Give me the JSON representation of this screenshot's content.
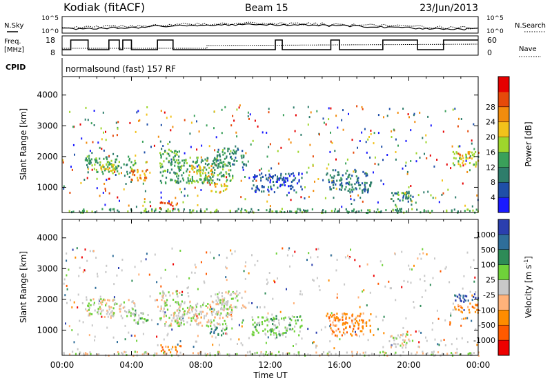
{
  "header": {
    "station": "Kodiak (fitACF)",
    "beam": "Beam 15",
    "date": "23/Jun/2013"
  },
  "summary_panels": {
    "nsky_label": "N.Sky",
    "nsky_ticks": [
      "10^5",
      "10^0"
    ],
    "nsearch_label": "N.Search",
    "nsearch_ticks": [
      "10^5",
      "10^0"
    ],
    "freq_label_line1": "Freq.",
    "freq_label_line2": "[MHz]",
    "freq_ticks": [
      "18",
      "8"
    ],
    "nave_label": "Nave",
    "nave_ticks": [
      "60",
      "0"
    ],
    "cpid_label": "CPID",
    "cpid_text": "normalsound (fast) 157 RF"
  },
  "chart_data": [
    {
      "type": "heatmap",
      "name": "power",
      "ylabel": "Slant Range [km]",
      "xlabel": "",
      "y_ticks": [
        "1000",
        "2000",
        "3000",
        "4000"
      ],
      "ylim": [
        180,
        4600
      ],
      "xlim_hours": [
        0,
        24
      ],
      "colorbar": {
        "label": "Power [dB]",
        "ticks": [
          "4",
          "8",
          "12",
          "16",
          "20",
          "24",
          "28"
        ],
        "colors": [
          "#1a1aff",
          "#1f4fa8",
          "#2e7d6b",
          "#3aa05a",
          "#9ed62c",
          "#f2c21b",
          "#f28c0d",
          "#e64a0a",
          "#e60000"
        ]
      },
      "regions": [
        {
          "t": [
            1.3,
            4.2
          ],
          "r": [
            1450,
            2050
          ],
          "level": 3
        },
        {
          "t": [
            2.0,
            3.0
          ],
          "r": [
            1550,
            1850
          ],
          "level": 5
        },
        {
          "t": [
            3.9,
            5.0
          ],
          "r": [
            1200,
            1600
          ],
          "level": 6
        },
        {
          "t": [
            5.6,
            6.6
          ],
          "r": [
            300,
            550
          ],
          "level": 7
        },
        {
          "t": [
            5.6,
            6.8
          ],
          "r": [
            1150,
            2300
          ],
          "level": 3
        },
        {
          "t": [
            6.5,
            9.8
          ],
          "r": [
            1150,
            2000
          ],
          "level": 3
        },
        {
          "t": [
            7.2,
            8.6
          ],
          "r": [
            1400,
            1800
          ],
          "level": 5
        },
        {
          "t": [
            8.8,
            10.6
          ],
          "r": [
            1700,
            2300
          ],
          "level": 2
        },
        {
          "t": [
            8.5,
            9.5
          ],
          "r": [
            850,
            1150
          ],
          "level": 5
        },
        {
          "t": [
            10.9,
            13.8
          ],
          "r": [
            850,
            1500
          ],
          "level": 1
        },
        {
          "t": [
            15.2,
            17.8
          ],
          "r": [
            850,
            1600
          ],
          "level": 2
        },
        {
          "t": [
            18.9,
            20.2
          ],
          "r": [
            450,
            900
          ],
          "level": 2
        },
        {
          "t": [
            19.2,
            20.0
          ],
          "r": [
            750,
            900
          ],
          "level": 4
        },
        {
          "t": [
            22.5,
            24.0
          ],
          "r": [
            1700,
            2200
          ],
          "level": 4
        },
        {
          "t": [
            22.8,
            23.5
          ],
          "r": [
            2050,
            2200
          ],
          "level": 6
        },
        {
          "t": [
            0.0,
            24.0
          ],
          "r": [
            200,
            330
          ],
          "level": 3
        }
      ]
    },
    {
      "type": "heatmap",
      "name": "velocity",
      "ylabel": "Slant Range [km]",
      "xlabel": "Time UT",
      "x_ticks": [
        "00:00",
        "04:00",
        "08:00",
        "12:00",
        "16:00",
        "20:00",
        "00:00"
      ],
      "y_ticks": [
        "1000",
        "2000",
        "3000",
        "4000"
      ],
      "ylim": [
        180,
        4600
      ],
      "xlim_hours": [
        0,
        24
      ],
      "colorbar": {
        "label": "Velocity [m s",
        "label_sup": "-1",
        "label_end": "]",
        "ticks": [
          "1000",
          "500",
          "100",
          "25",
          "-25",
          "-100",
          "-500",
          "-1000"
        ],
        "colors": [
          "#2b3fae",
          "#2f6e9a",
          "#2e8b57",
          "#6fd13a",
          "#c8c8c8",
          "#ffb27a",
          "#ff8c00",
          "#ff5a00",
          "#ee0000"
        ]
      },
      "regions": [
        {
          "t": [
            1.3,
            4.2
          ],
          "r": [
            1450,
            2050
          ],
          "level": 4
        },
        {
          "t": [
            3.9,
            5.0
          ],
          "r": [
            1200,
            1600
          ],
          "level": 3
        },
        {
          "t": [
            5.6,
            6.6
          ],
          "r": [
            300,
            550
          ],
          "level": 6
        },
        {
          "t": [
            5.6,
            6.8
          ],
          "r": [
            1150,
            2300
          ],
          "level": 4
        },
        {
          "t": [
            6.5,
            9.8
          ],
          "r": [
            1150,
            2000
          ],
          "level": 4
        },
        {
          "t": [
            8.5,
            9.5
          ],
          "r": [
            850,
            1150
          ],
          "level": 2
        },
        {
          "t": [
            8.8,
            10.6
          ],
          "r": [
            1700,
            2300
          ],
          "level": 4
        },
        {
          "t": [
            10.9,
            13.8
          ],
          "r": [
            850,
            1500
          ],
          "level": 3
        },
        {
          "t": [
            15.2,
            17.8
          ],
          "r": [
            850,
            1600
          ],
          "level": 6
        },
        {
          "t": [
            18.9,
            20.2
          ],
          "r": [
            450,
            900
          ],
          "level": 4
        },
        {
          "t": [
            22.5,
            24.0
          ],
          "r": [
            1950,
            2200
          ],
          "level": 0
        },
        {
          "t": [
            22.5,
            24.0
          ],
          "r": [
            1600,
            1900
          ],
          "level": 6
        },
        {
          "t": [
            0.0,
            24.0
          ],
          "r": [
            200,
            330
          ],
          "level": 4
        }
      ]
    }
  ]
}
